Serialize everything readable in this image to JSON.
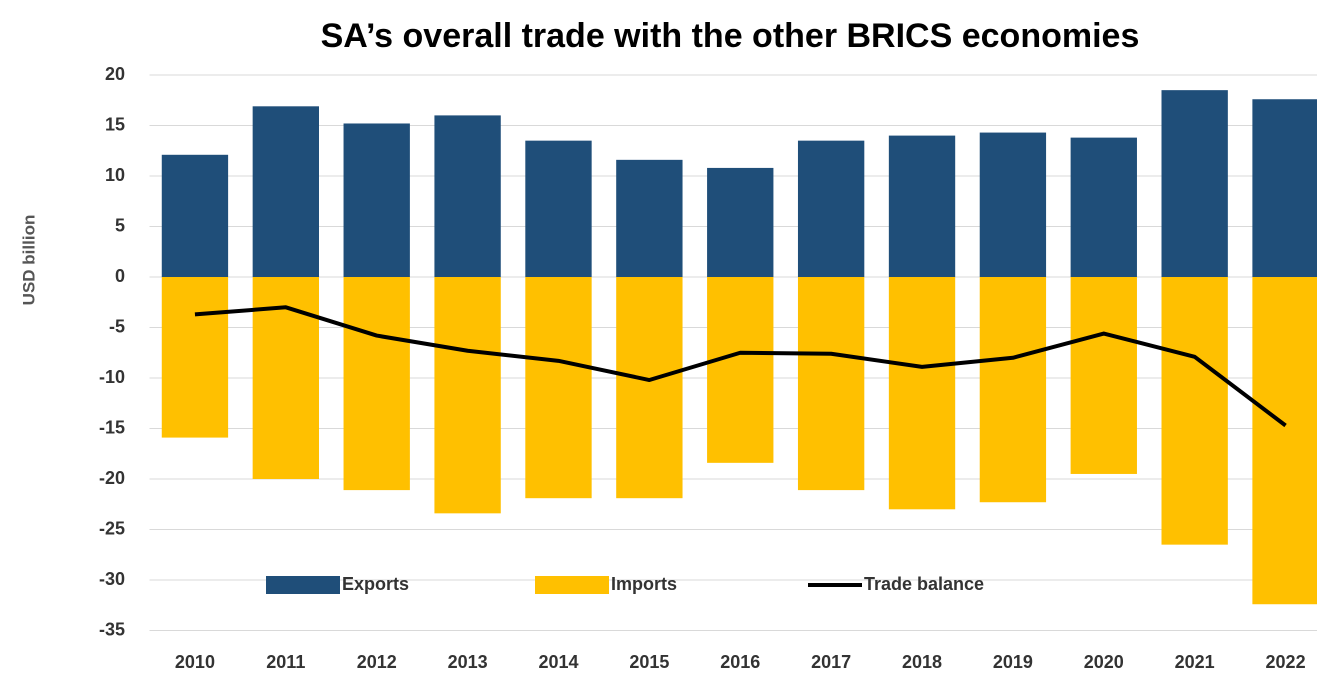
{
  "chart_data": {
    "type": "bar",
    "title": "SA’s overall trade with the other BRICS economies",
    "y_label": "USD billion",
    "categories": [
      "2010",
      "2011",
      "2012",
      "2013",
      "2014",
      "2015",
      "2016",
      "2017",
      "2018",
      "2019",
      "2020",
      "2021",
      "2022"
    ],
    "series": [
      {
        "name": "Exports",
        "color": "#1f4e79",
        "type": "bar",
        "values": [
          12.1,
          16.9,
          15.2,
          16.0,
          13.5,
          11.6,
          10.8,
          13.5,
          14.0,
          14.3,
          13.8,
          18.5,
          17.6
        ]
      },
      {
        "name": "Imports",
        "color": "#ffc000",
        "type": "bar",
        "values": [
          -15.9,
          -20.0,
          -21.1,
          -23.4,
          -21.9,
          -21.9,
          -18.4,
          -21.1,
          -23.0,
          -22.3,
          -19.5,
          -26.5,
          -32.4
        ]
      },
      {
        "name": "Trade balance",
        "color": "#000000",
        "type": "line",
        "values": [
          -3.7,
          -3.0,
          -5.8,
          -7.3,
          -8.3,
          -10.2,
          -7.5,
          -7.6,
          -8.9,
          -8.0,
          -5.6,
          -7.9,
          -14.7
        ]
      }
    ],
    "ylim": [
      -35,
      20
    ],
    "yticks": [
      -35,
      -30,
      -25,
      -20,
      -15,
      -10,
      -5,
      0,
      5,
      10,
      15,
      20
    ],
    "grid": true,
    "legend": "bottom"
  }
}
